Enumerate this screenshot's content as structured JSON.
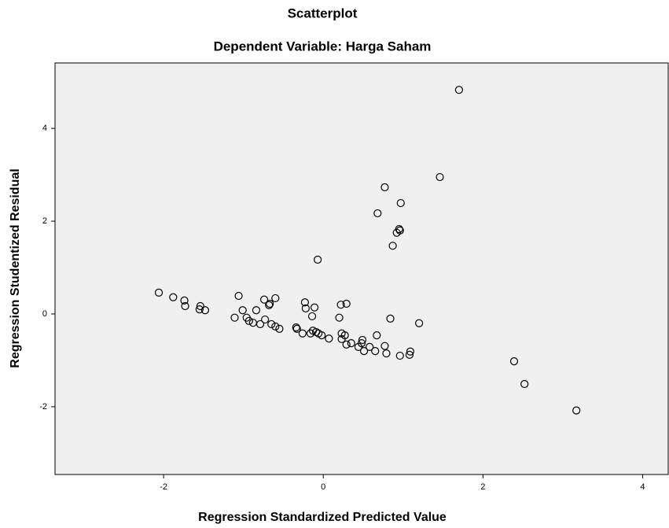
{
  "chart_data": {
    "type": "scatter",
    "title": "Scatterplot",
    "subtitle": "Dependent Variable: Harga Saham",
    "x_label": "Regression Standardized Predicted Value",
    "y_label": "Regression Studentized Residual",
    "xlim": [
      -3.36,
      4.33
    ],
    "ylim": [
      -3.46,
      5.41
    ],
    "xticks": [
      -2,
      0,
      2,
      4
    ],
    "yticks": [
      -2,
      0,
      2,
      4
    ],
    "color": "#000000",
    "x": [
      -2.06,
      -1.88,
      -1.74,
      -1.73,
      -1.54,
      -1.55,
      -1.48,
      -1.11,
      -1.06,
      -1.01,
      -0.96,
      -0.93,
      -0.84,
      -0.88,
      -0.79,
      -0.74,
      -0.73,
      -0.67,
      -0.68,
      -0.6,
      -0.65,
      -0.6,
      -0.55,
      -0.34,
      -0.33,
      -0.26,
      -0.23,
      -0.22,
      -0.16,
      -0.14,
      -0.11,
      -0.13,
      -0.09,
      -0.06,
      -0.07,
      -0.02,
      0.07,
      0.2,
      0.22,
      0.29,
      0.23,
      0.23,
      0.27,
      0.29,
      0.35,
      0.44,
      0.48,
      0.49,
      0.51,
      0.58,
      0.65,
      0.67,
      0.77,
      0.79,
      0.84,
      0.68,
      0.77,
      0.87,
      0.92,
      0.95,
      0.96,
      0.97,
      0.96,
      1.08,
      1.09,
      1.2,
      1.46,
      1.7,
      2.39,
      2.52,
      3.17
    ],
    "y": [
      0.46,
      0.36,
      0.29,
      0.17,
      0.17,
      0.1,
      0.08,
      -0.08,
      0.39,
      0.08,
      -0.08,
      -0.15,
      0.08,
      -0.19,
      -0.22,
      0.31,
      -0.12,
      0.22,
      0.19,
      0.34,
      -0.22,
      -0.27,
      -0.32,
      -0.29,
      -0.32,
      -0.42,
      0.25,
      0.12,
      -0.42,
      -0.05,
      0.14,
      -0.36,
      -0.39,
      -0.42,
      1.17,
      -0.46,
      -0.53,
      -0.08,
      0.2,
      0.22,
      -0.42,
      -0.54,
      -0.46,
      -0.66,
      -0.63,
      -0.71,
      -0.63,
      -0.56,
      -0.8,
      -0.71,
      -0.8,
      -0.46,
      -0.69,
      -0.85,
      -0.1,
      2.17,
      2.73,
      1.47,
      1.75,
      1.83,
      1.8,
      2.39,
      -0.9,
      -0.88,
      -0.81,
      -0.2,
      2.95,
      4.83,
      -1.02,
      -1.51,
      -2.08
    ]
  }
}
